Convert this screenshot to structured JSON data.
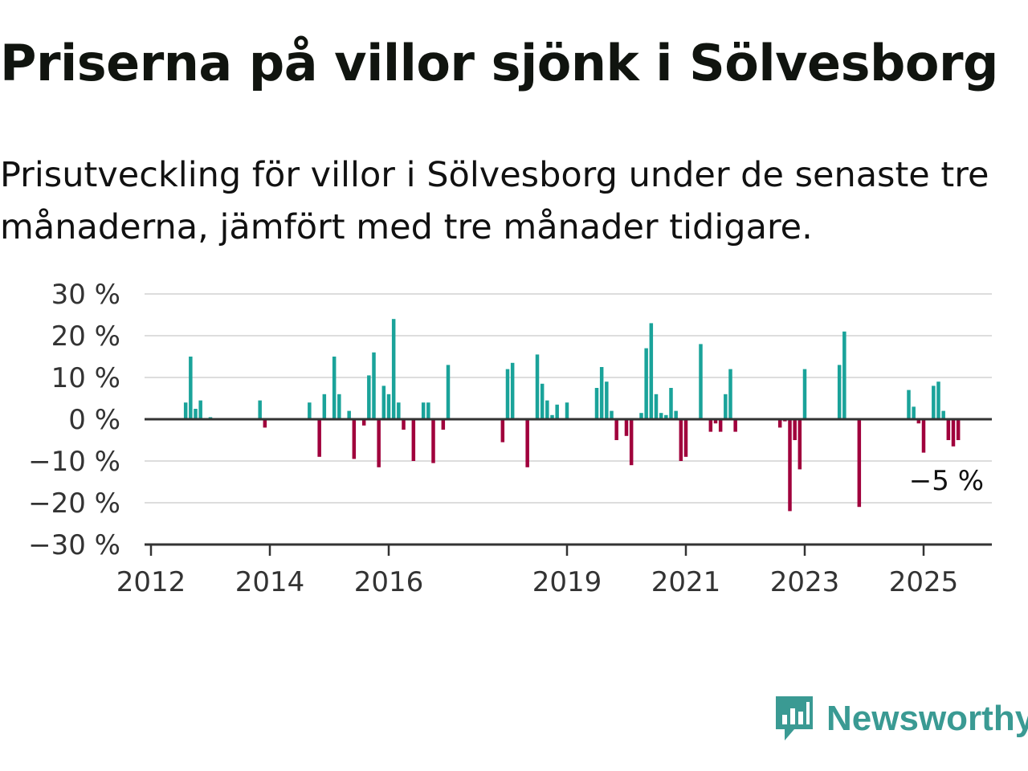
{
  "header": {
    "title": "Priserna på villor sjönk i Sölvesborg",
    "subtitle": "Prisutveckling för villor i Sölvesborg under de senaste tre månaderna, jämfört med tre månader tidigare."
  },
  "brand": {
    "name": "Newsworthy",
    "color": "#3a9a93",
    "icon": "newsworthy-logo-icon"
  },
  "colors": {
    "positive": "#1aa39a",
    "negative": "#a0003c",
    "grid": "#dddddd",
    "axis": "#333333"
  },
  "chart_data": {
    "type": "bar",
    "title": "",
    "xlabel": "",
    "ylabel": "",
    "ylim": [
      -30,
      30
    ],
    "xlim": [
      "2012-01",
      "2026-01"
    ],
    "yticks": [
      30,
      20,
      10,
      0,
      -10,
      -20,
      -30
    ],
    "ytick_labels": [
      "30 %",
      "20 %",
      "10 %",
      "0 %",
      "−10 %",
      "−20 %",
      "−30 %"
    ],
    "xticks": [
      "2012",
      "2014",
      "2016",
      "2019",
      "2021",
      "2023",
      "2025"
    ],
    "grid": true,
    "last_value_label": "−5 %",
    "series": [
      {
        "values": [
          [
            "2012-08",
            4
          ],
          [
            "2012-09",
            15
          ],
          [
            "2012-10",
            2.5
          ],
          [
            "2012-11",
            4.5
          ],
          [
            "2013-01",
            0.5
          ],
          [
            "2013-11",
            4.5
          ],
          [
            "2013-12",
            -2
          ],
          [
            "2014-09",
            4
          ],
          [
            "2014-11",
            -9
          ],
          [
            "2014-12",
            6
          ],
          [
            "2015-02",
            15
          ],
          [
            "2015-03",
            6
          ],
          [
            "2015-05",
            2
          ],
          [
            "2015-06",
            -9.5
          ],
          [
            "2015-08",
            -1.5
          ],
          [
            "2015-09",
            10.5
          ],
          [
            "2015-10",
            16
          ],
          [
            "2015-11",
            -11.5
          ],
          [
            "2015-12",
            8
          ],
          [
            "2016-01",
            6
          ],
          [
            "2016-02",
            24
          ],
          [
            "2016-03",
            4
          ],
          [
            "2016-04",
            -2.5
          ],
          [
            "2016-06",
            -10
          ],
          [
            "2016-08",
            4
          ],
          [
            "2016-09",
            4
          ],
          [
            "2016-10",
            -10.5
          ],
          [
            "2016-12",
            -2.5
          ],
          [
            "2017-01",
            13
          ],
          [
            "2017-12",
            -5.5
          ],
          [
            "2018-01",
            12
          ],
          [
            "2018-02",
            13.5
          ],
          [
            "2018-03",
            0.3
          ],
          [
            "2018-05",
            -11.5
          ],
          [
            "2018-07",
            15.5
          ],
          [
            "2018-08",
            8.5
          ],
          [
            "2018-09",
            4.5
          ],
          [
            "2018-10",
            1
          ],
          [
            "2018-11",
            3.5
          ],
          [
            "2019-01",
            4
          ],
          [
            "2019-07",
            7.5
          ],
          [
            "2019-08",
            12.5
          ],
          [
            "2019-09",
            9
          ],
          [
            "2019-10",
            2
          ],
          [
            "2019-11",
            -5
          ],
          [
            "2020-01",
            -4
          ],
          [
            "2020-02",
            -11
          ],
          [
            "2020-04",
            1.5
          ],
          [
            "2020-05",
            17
          ],
          [
            "2020-06",
            23
          ],
          [
            "2020-07",
            6
          ],
          [
            "2020-08",
            1.5
          ],
          [
            "2020-09",
            1
          ],
          [
            "2020-10",
            7.5
          ],
          [
            "2020-11",
            2
          ],
          [
            "2020-12",
            -10
          ],
          [
            "2021-01",
            -9
          ],
          [
            "2021-04",
            18
          ],
          [
            "2021-06",
            -3
          ],
          [
            "2021-07",
            -1
          ],
          [
            "2021-08",
            -3
          ],
          [
            "2021-09",
            6
          ],
          [
            "2021-10",
            12
          ],
          [
            "2021-11",
            -3
          ],
          [
            "2022-08",
            -2
          ],
          [
            "2022-09",
            -0.5
          ],
          [
            "2022-10",
            -22
          ],
          [
            "2022-11",
            -5
          ],
          [
            "2022-12",
            -12
          ],
          [
            "2023-01",
            12
          ],
          [
            "2023-08",
            13
          ],
          [
            "2023-09",
            21
          ],
          [
            "2023-12",
            -21
          ],
          [
            "2024-10",
            7
          ],
          [
            "2024-11",
            3
          ],
          [
            "2024-12",
            -1
          ],
          [
            "2025-01",
            -8
          ],
          [
            "2025-03",
            8
          ],
          [
            "2025-04",
            9
          ],
          [
            "2025-05",
            2
          ],
          [
            "2025-06",
            -5
          ],
          [
            "2025-07",
            -6.5
          ],
          [
            "2025-08",
            -5
          ]
        ]
      }
    ]
  }
}
